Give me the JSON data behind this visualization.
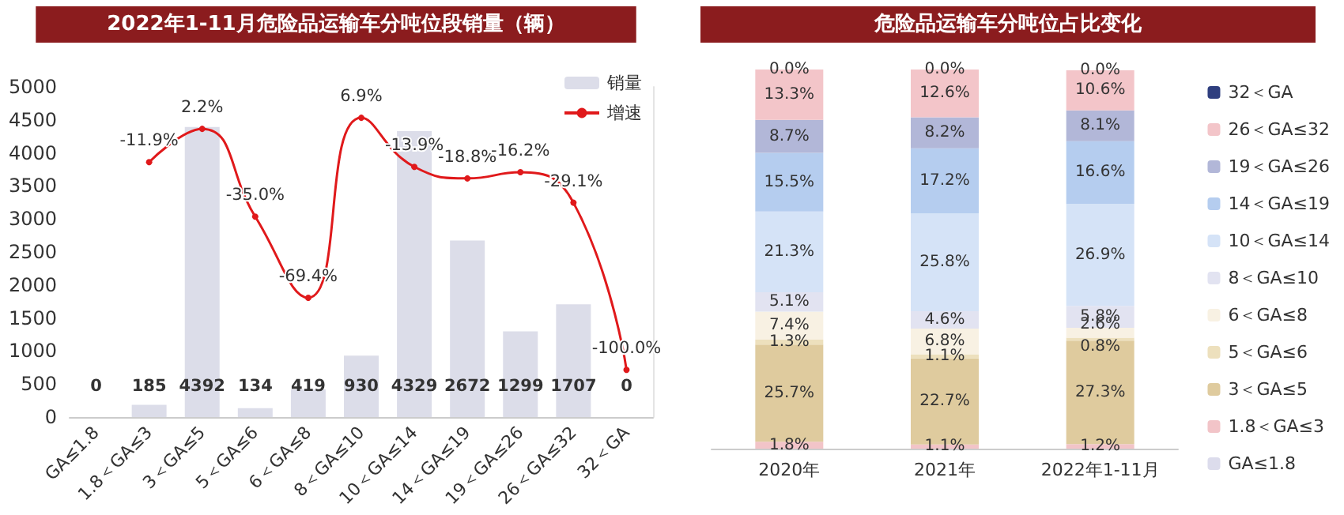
{
  "chart_data": [
    {
      "type": "bar",
      "title": "2022年1-11月危险品运输车分吨位段销量（辆）",
      "categories": [
        "GA≤1.8",
        "1.8＜GA≤3",
        "3＜GA≤5",
        "5＜GA≤6",
        "6＜GA≤8",
        "8＜GA≤10",
        "10＜GA≤14",
        "14＜GA≤19",
        "19＜GA≤26",
        "26＜GA≤32",
        "32＜GA"
      ],
      "series": [
        {
          "name": "销量",
          "type": "bar",
          "color": "#dcdde9",
          "values": [
            0,
            185,
            4392,
            134,
            419,
            930,
            4329,
            2672,
            1299,
            1707,
            0
          ],
          "value_labels": [
            "0",
            "185",
            "4392",
            "134",
            "419",
            "930",
            "4329",
            "2672",
            "1299",
            "1707",
            "0"
          ]
        },
        {
          "name": "增速",
          "type": "line",
          "axis": "y2",
          "color": "#e0191b",
          "marker": "circle",
          "values": [
            null,
            -11.9,
            2.2,
            -35.0,
            -69.4,
            6.9,
            -13.9,
            -18.8,
            -16.2,
            -29.1,
            -100.0
          ],
          "value_labels": [
            null,
            "-11.9%",
            "2.2%",
            "-35.0%",
            "-69.4%",
            "6.9%",
            "-13.9%",
            "-18.8%",
            "-16.2%",
            "-29.1%",
            "-100.0%"
          ]
        }
      ],
      "ylim": [
        0,
        5000
      ],
      "yticks": [
        0,
        500,
        1000,
        1500,
        2000,
        2500,
        3000,
        3500,
        4000,
        4500,
        5000
      ],
      "y2lim": [
        -120,
        20
      ],
      "legend": "top right",
      "grid": false
    },
    {
      "type": "bar",
      "title": "危险品运输车分吨位占比变化",
      "stacked": true,
      "categories": [
        "2020年",
        "2021年",
        "2022年1-11月"
      ],
      "tick_labels": "x",
      "legend": "right",
      "grid": false,
      "series": [
        {
          "name": "GA≤1.8",
          "color": "#dcdcec",
          "values": [
            0,
            0,
            0
          ],
          "value_labels": [
            null,
            null,
            null
          ]
        },
        {
          "name": "1.8＜GA≤3",
          "color": "#f2c4c8",
          "values": [
            1.8,
            1.1,
            1.2
          ],
          "value_labels": [
            "1.8%",
            "1.1%",
            "1.2%"
          ]
        },
        {
          "name": "3＜GA≤5",
          "color": "#dfcb9e",
          "values": [
            25.7,
            22.7,
            27.3
          ],
          "value_labels": [
            "25.7%",
            "22.7%",
            "27.3%"
          ]
        },
        {
          "name": "5＜GA≤6",
          "color": "#ede0bd",
          "values": [
            1.3,
            1.1,
            0.8
          ],
          "value_labels": [
            "1.3%",
            "1.1%",
            "0.8%"
          ]
        },
        {
          "name": "6＜GA≤8",
          "color": "#f8f1e3",
          "values": [
            7.4,
            6.8,
            2.6
          ],
          "value_labels": [
            "7.4%",
            "6.8%",
            "2.6%"
          ]
        },
        {
          "name": "8＜GA≤10",
          "color": "#e2e3f1",
          "values": [
            5.1,
            4.6,
            5.8
          ],
          "value_labels": [
            "5.1%",
            "4.6%",
            "5.8%"
          ]
        },
        {
          "name": "10＜GA≤14",
          "color": "#d5e3f7",
          "values": [
            21.3,
            25.8,
            26.9
          ],
          "value_labels": [
            "21.3%",
            "25.8%",
            "26.9%"
          ]
        },
        {
          "name": "14＜GA≤19",
          "color": "#b5cdef",
          "values": [
            15.5,
            17.2,
            16.6
          ],
          "value_labels": [
            "15.5%",
            "17.2%",
            "16.6%"
          ]
        },
        {
          "name": "19＜GA≤26",
          "color": "#b2b7d8",
          "values": [
            8.7,
            8.2,
            8.1
          ],
          "value_labels": [
            "8.7%",
            "8.2%",
            "8.1%"
          ]
        },
        {
          "name": "26＜GA≤32",
          "color": "#f3c5c9",
          "values": [
            13.3,
            12.6,
            10.6
          ],
          "value_labels": [
            "13.3%",
            "12.6%",
            "10.6%"
          ]
        },
        {
          "name": "32＜GA",
          "color": "#2f3f7f",
          "values": [
            0.0,
            0.0,
            0.0
          ],
          "value_labels": [
            "0.0%",
            "0.0%",
            "0.0%"
          ]
        }
      ]
    }
  ]
}
